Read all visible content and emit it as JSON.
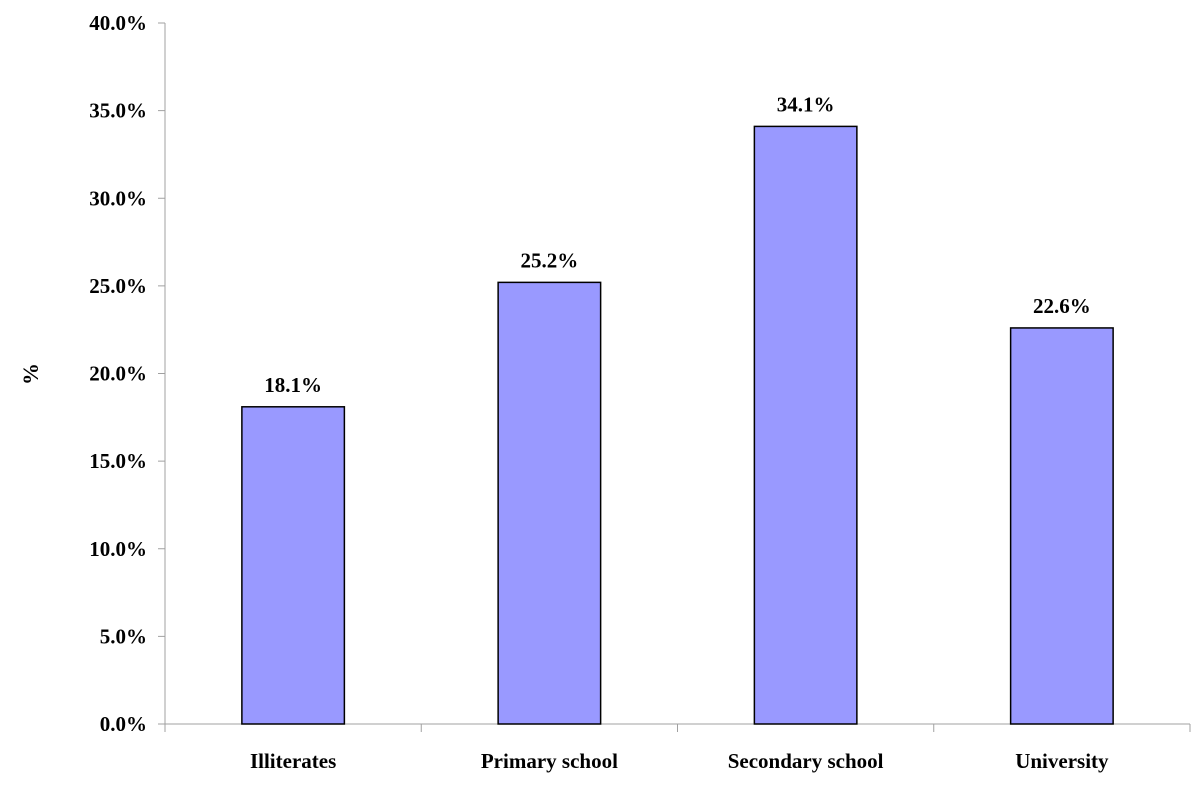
{
  "chart_data": {
    "type": "bar",
    "categories": [
      "Illiterates",
      "Primary school",
      "Secondary school",
      "University"
    ],
    "values": [
      18.1,
      25.2,
      34.1,
      22.6
    ],
    "data_labels": [
      "18.1%",
      "25.2%",
      "34.1%",
      "22.6%"
    ],
    "title": "",
    "xlabel": "",
    "ylabel": "%",
    "ylim": [
      0,
      40
    ],
    "yticks": [
      0,
      5,
      10,
      15,
      20,
      25,
      30,
      35,
      40
    ],
    "ytick_labels": [
      "0.0%",
      "5.0%",
      "10.0%",
      "15.0%",
      "20.0%",
      "25.0%",
      "30.0%",
      "35.0%",
      "40.0%"
    ],
    "grid": false,
    "legend": "none",
    "colors": {
      "bar_fill": "#9999ff",
      "bar_stroke": "#000000",
      "axis": "#a0a0a0",
      "text": "#000000"
    }
  }
}
